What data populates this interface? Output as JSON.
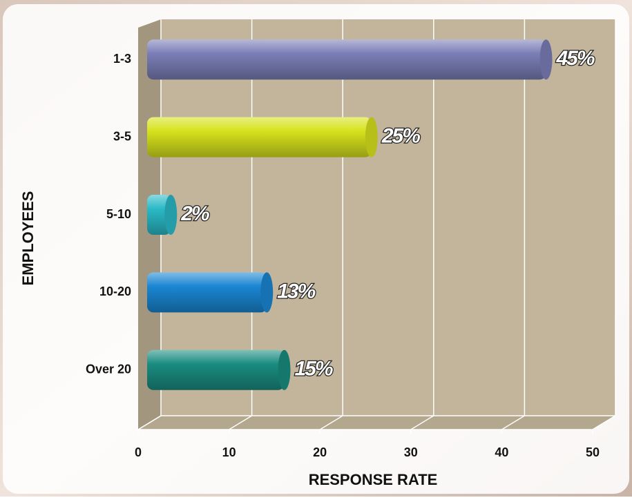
{
  "chart_data": {
    "type": "bar",
    "orientation": "horizontal",
    "x_label": "RESPONSE RATE",
    "y_label": "EMPLOYEES",
    "categories": [
      "1-3",
      "3-5",
      "5-10",
      "10-20",
      "Over 20"
    ],
    "values": [
      45,
      25,
      2,
      13,
      15
    ],
    "value_labels": [
      "45%",
      "25%",
      "2%",
      "13%",
      "15%"
    ],
    "colors": [
      "#7a7eb6",
      "#d6e21c",
      "#2ab9c6",
      "#1a86d2",
      "#1a8c80"
    ],
    "xlim": [
      0,
      50
    ],
    "xticks": [
      0,
      10,
      20,
      30,
      40,
      50
    ],
    "grid": true
  }
}
